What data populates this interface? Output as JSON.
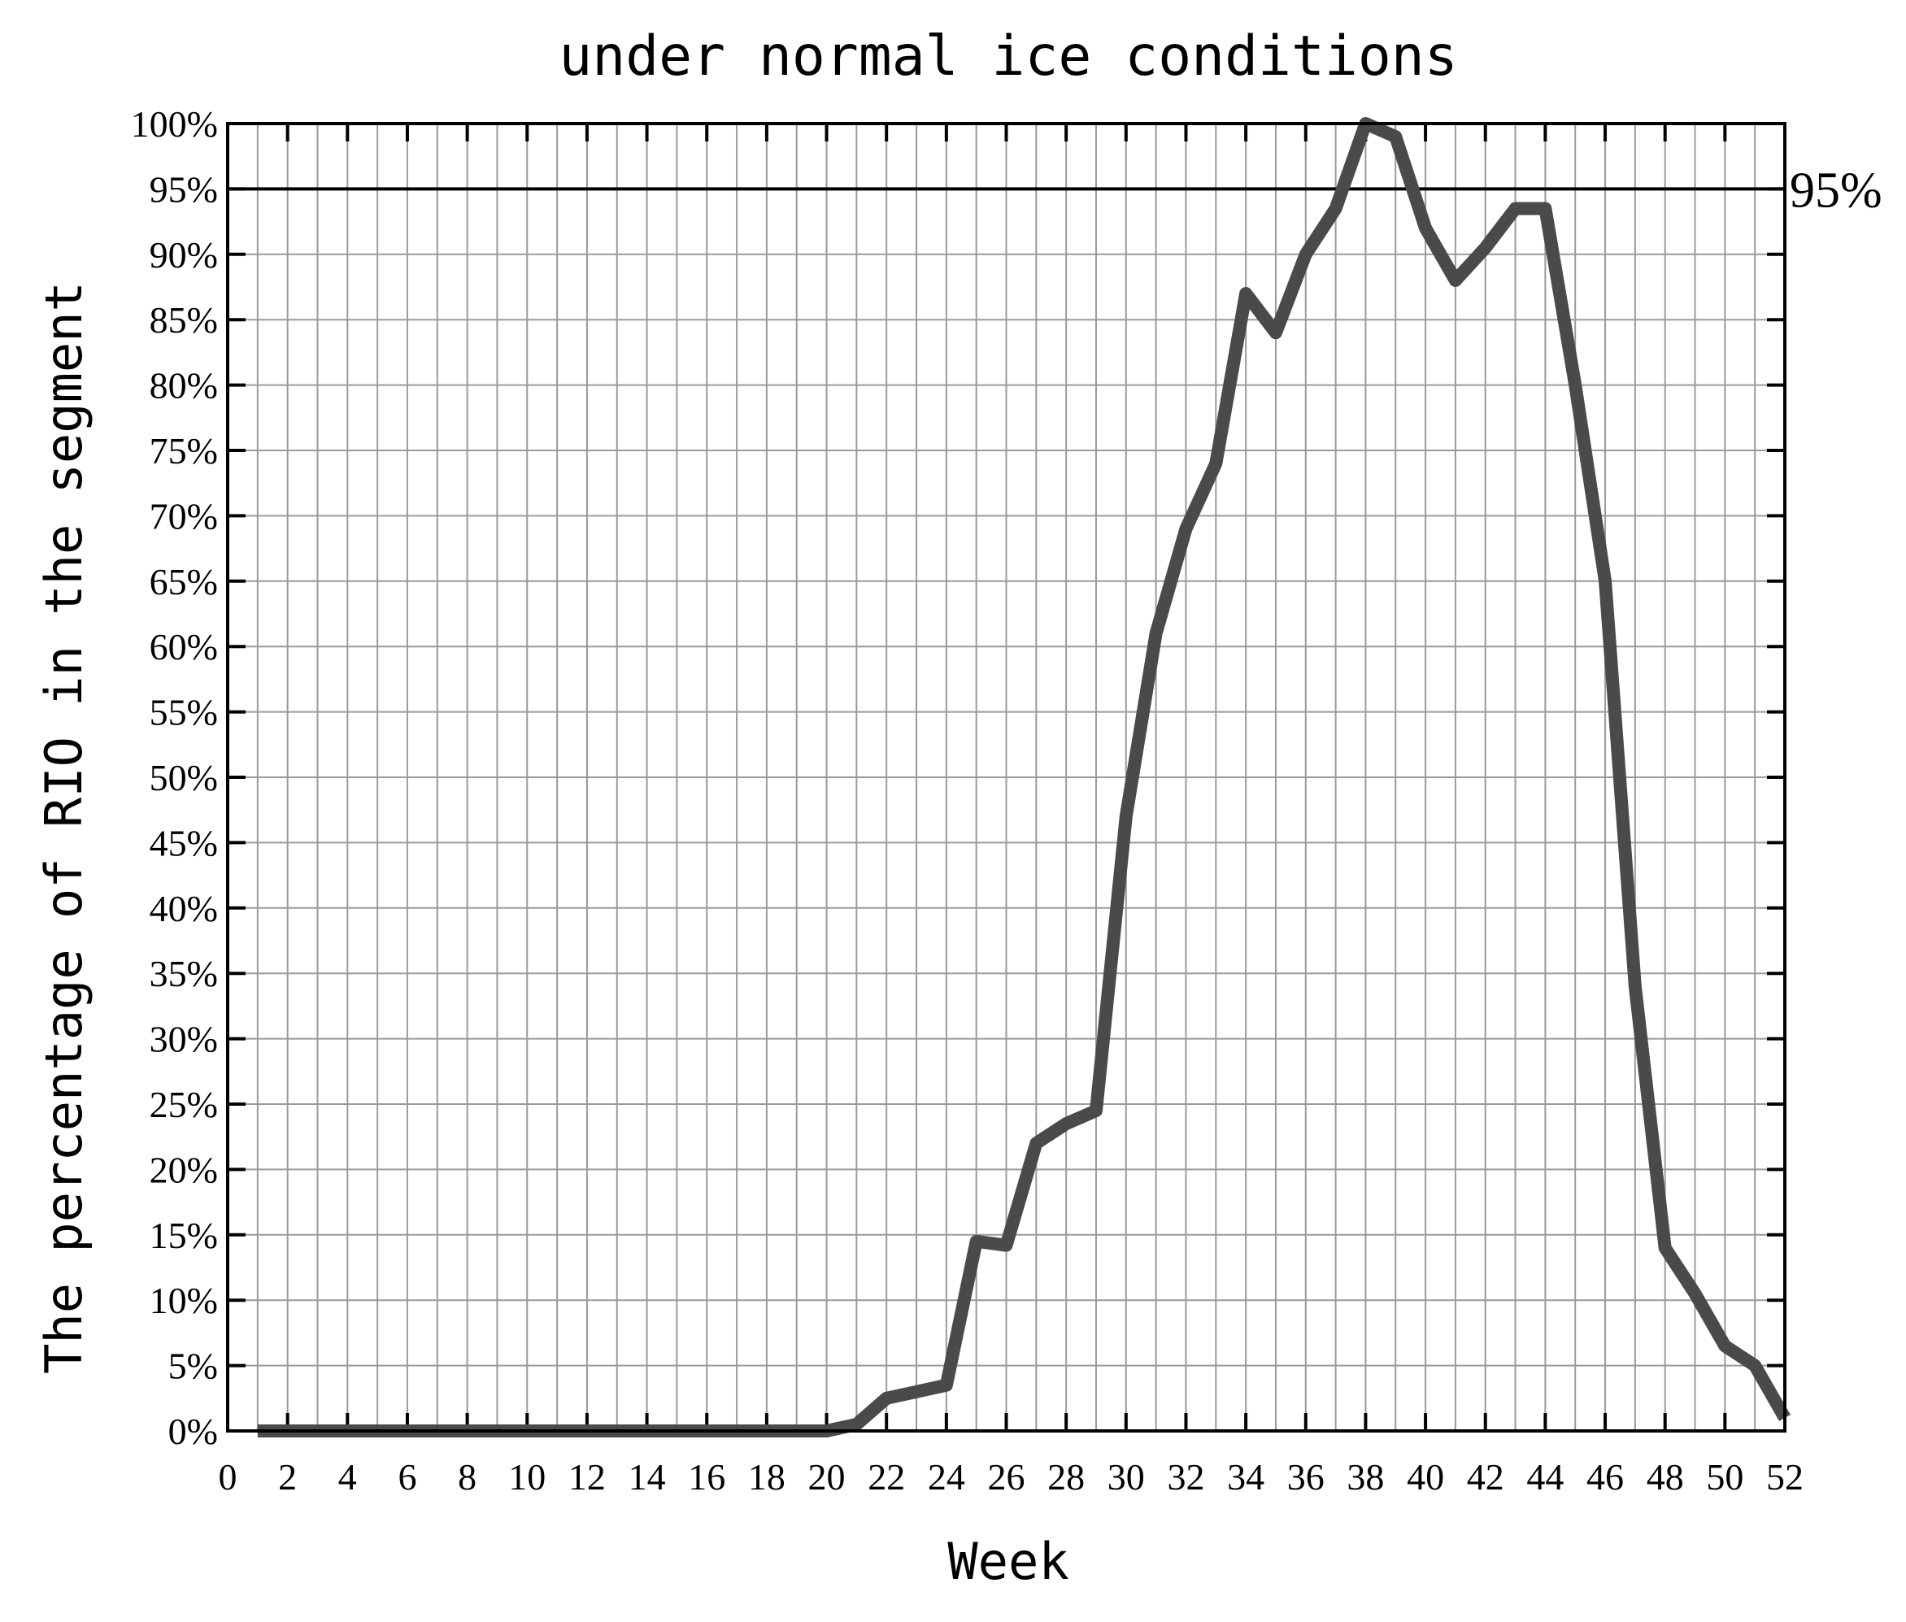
{
  "chart_data": {
    "type": "line",
    "title": "under normal ice conditions",
    "xlabel": "Week",
    "ylabel": "The percentage of RIO in the segment",
    "xlim": [
      0,
      52
    ],
    "ylim": [
      0,
      100
    ],
    "x_ticks": [
      "0",
      "2",
      "4",
      "6",
      "8",
      "10",
      "12",
      "14",
      "16",
      "18",
      "20",
      "22",
      "24",
      "26",
      "28",
      "30",
      "32",
      "34",
      "36",
      "38",
      "40",
      "42",
      "44",
      "46",
      "48",
      "50",
      "52"
    ],
    "y_ticks": [
      "0%",
      "5%",
      "10%",
      "15%",
      "20%",
      "25%",
      "30%",
      "35%",
      "40%",
      "45%",
      "50%",
      "55%",
      "60%",
      "65%",
      "70%",
      "75%",
      "80%",
      "85%",
      "90%",
      "95%",
      "100%"
    ],
    "grid": true,
    "reference_line": {
      "value": 95,
      "label": "95%"
    },
    "series": [
      {
        "color": "#4a4a4a",
        "x": [
          1,
          2,
          3,
          4,
          5,
          6,
          7,
          8,
          9,
          10,
          11,
          12,
          13,
          14,
          15,
          16,
          17,
          18,
          19,
          20,
          21,
          22,
          23,
          24,
          25,
          26,
          27,
          28,
          29,
          30,
          31,
          32,
          33,
          34,
          35,
          36,
          37,
          38,
          39,
          40,
          41,
          42,
          43,
          44,
          45,
          46,
          47,
          48,
          49,
          50,
          51,
          52
        ],
        "values": [
          0,
          0,
          0,
          0,
          0,
          0,
          0,
          0,
          0,
          0,
          0,
          0,
          0,
          0,
          0,
          0,
          0,
          0,
          0,
          0,
          0.5,
          2.5,
          3,
          3.5,
          14.5,
          14.2,
          22,
          23.5,
          24.5,
          47,
          61,
          69,
          74,
          87,
          84,
          90,
          93.5,
          100,
          99,
          92,
          88,
          90.5,
          93.5,
          93.5,
          80,
          65,
          34,
          14,
          10.5,
          6.5,
          5,
          1
        ]
      }
    ]
  }
}
